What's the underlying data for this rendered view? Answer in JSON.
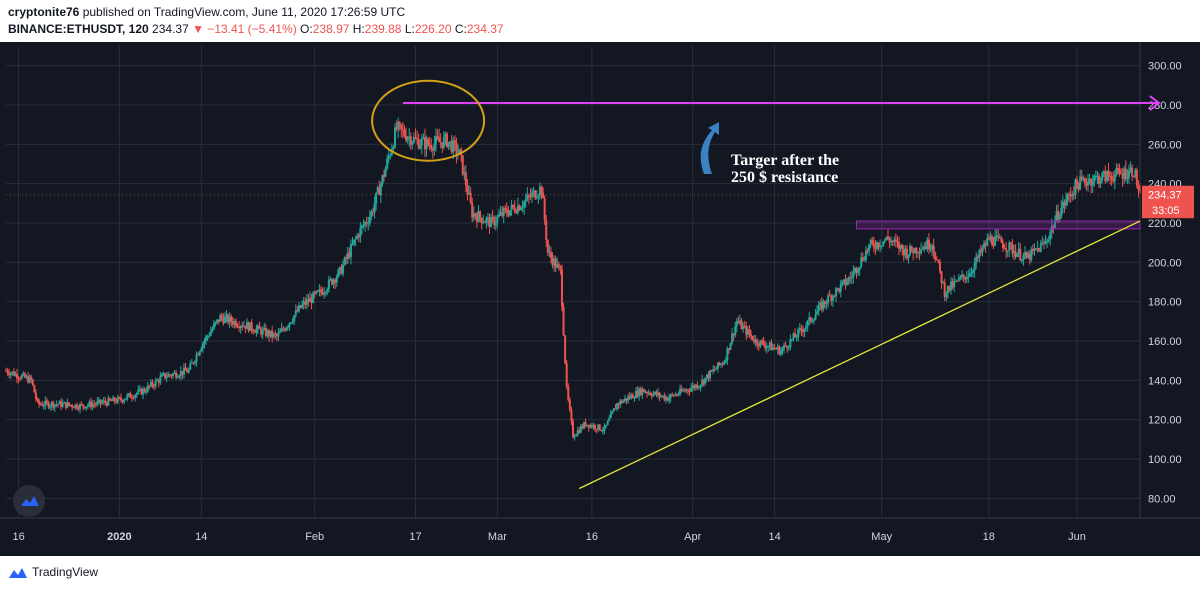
{
  "header": {
    "line1": {
      "author": "cryptonite76",
      "rest": " published on TradingView.com, June 11, 2020 17:26:59 UTC"
    },
    "line2": {
      "symbol": "BINANCE:ETHUSDT, 120",
      "last": "234.37",
      "change": "▼ −13.41 (−5.41%)",
      "o_label": "O:",
      "o": "238.97",
      "h_label": "H:",
      "h": "239.88",
      "l_label": "L:",
      "l": "226.20",
      "c_label": "C:",
      "c": "234.37"
    }
  },
  "footer": {
    "brand": "TradingView"
  },
  "chart_data": {
    "type": "candlestick",
    "symbol": "BINANCE:ETHUSDT",
    "interval": "120",
    "y_range": [
      70,
      310
    ],
    "y_ticks": [
      "300.00",
      "280.00",
      "260.00",
      "240.00",
      "220.00",
      "200.00",
      "180.00",
      "160.00",
      "140.00",
      "120.00",
      "100.00",
      "80.00"
    ],
    "y_tick_values": [
      300,
      280,
      260,
      240,
      220,
      200,
      180,
      160,
      140,
      120,
      100,
      80
    ],
    "x_range": [
      "2019-12-14",
      "2020-06-11"
    ],
    "x_ticks": [
      {
        "label": "16",
        "date": "2019-12-16"
      },
      {
        "label": "2020",
        "date": "2020-01-01"
      },
      {
        "label": "14",
        "date": "2020-01-14"
      },
      {
        "label": "Feb",
        "date": "2020-02-01"
      },
      {
        "label": "17",
        "date": "2020-02-17"
      },
      {
        "label": "Mar",
        "date": "2020-03-01"
      },
      {
        "label": "16",
        "date": "2020-03-16"
      },
      {
        "label": "Apr",
        "date": "2020-04-01"
      },
      {
        "label": "14",
        "date": "2020-04-14"
      },
      {
        "label": "May",
        "date": "2020-05-01"
      },
      {
        "label": "18",
        "date": "2020-05-18"
      },
      {
        "label": "Jun",
        "date": "2020-06-01"
      }
    ],
    "price_path": [
      [
        "2019-12-14",
        145
      ],
      [
        "2019-12-18",
        140
      ],
      [
        "2019-12-19",
        128
      ],
      [
        "2019-12-22",
        128
      ],
      [
        "2019-12-26",
        127
      ],
      [
        "2020-01-01",
        130
      ],
      [
        "2020-01-05",
        135
      ],
      [
        "2020-01-08",
        142
      ],
      [
        "2020-01-12",
        145
      ],
      [
        "2020-01-14",
        158
      ],
      [
        "2020-01-17",
        172
      ],
      [
        "2020-01-21",
        168
      ],
      [
        "2020-01-26",
        162
      ],
      [
        "2020-01-30",
        178
      ],
      [
        "2020-02-02",
        185
      ],
      [
        "2020-02-05",
        195
      ],
      [
        "2020-02-08",
        215
      ],
      [
        "2020-02-10",
        225
      ],
      [
        "2020-02-12",
        245
      ],
      [
        "2020-02-14",
        268
      ],
      [
        "2020-02-17",
        262
      ],
      [
        "2020-02-19",
        260
      ],
      [
        "2020-02-22",
        262
      ],
      [
        "2020-02-24",
        255
      ],
      [
        "2020-02-26",
        225
      ],
      [
        "2020-02-29",
        220
      ],
      [
        "2020-03-02",
        225
      ],
      [
        "2020-03-05",
        230
      ],
      [
        "2020-03-08",
        238
      ],
      [
        "2020-03-09",
        205
      ],
      [
        "2020-03-11",
        195
      ],
      [
        "2020-03-12",
        135
      ],
      [
        "2020-03-13",
        112
      ],
      [
        "2020-03-15",
        118
      ],
      [
        "2020-03-18",
        115
      ],
      [
        "2020-03-20",
        128
      ],
      [
        "2020-03-24",
        135
      ],
      [
        "2020-03-28",
        131
      ],
      [
        "2020-04-02",
        138
      ],
      [
        "2020-04-06",
        150
      ],
      [
        "2020-04-08",
        170
      ],
      [
        "2020-04-11",
        160
      ],
      [
        "2020-04-15",
        155
      ],
      [
        "2020-04-19",
        168
      ],
      [
        "2020-04-22",
        180
      ],
      [
        "2020-04-26",
        192
      ],
      [
        "2020-04-29",
        208
      ],
      [
        "2020-05-02",
        212
      ],
      [
        "2020-05-05",
        205
      ],
      [
        "2020-05-09",
        210
      ],
      [
        "2020-05-11",
        185
      ],
      [
        "2020-05-15",
        195
      ],
      [
        "2020-05-18",
        212
      ],
      [
        "2020-05-20",
        210
      ],
      [
        "2020-05-24",
        202
      ],
      [
        "2020-05-27",
        210
      ],
      [
        "2020-05-29",
        225
      ],
      [
        "2020-06-01",
        240
      ],
      [
        "2020-06-03",
        242
      ],
      [
        "2020-06-06",
        244
      ],
      [
        "2020-06-08",
        245
      ],
      [
        "2020-06-10",
        247
      ],
      [
        "2020-06-11",
        234
      ]
    ],
    "current_price": {
      "label": "234.37",
      "value": 234.37,
      "color": "#ef5350"
    },
    "countdown": {
      "label": "33:05",
      "value": 226.5
    },
    "annotations": {
      "text_line1": "Targer after the",
      "text_line2": "250 $ resistance",
      "target_level": 281,
      "target_from": "2020-02-15",
      "target_to": "2020-06-14",
      "support_zone": {
        "from": "2020-04-27",
        "to": "2020-06-11",
        "low": 217,
        "high": 221
      },
      "trendline": {
        "from": [
          "2020-03-14",
          85
        ],
        "to": [
          "2020-06-11",
          221
        ]
      },
      "circle": {
        "center": [
          "2020-02-19",
          272
        ],
        "color": "#d4a017"
      }
    },
    "colors": {
      "up": "#26a69a",
      "down": "#ef5350",
      "target": "#e040fb",
      "trend": "#e6e83a",
      "zone": "#9c27b0",
      "arrow": "#3b82c4"
    },
    "grid": true
  }
}
